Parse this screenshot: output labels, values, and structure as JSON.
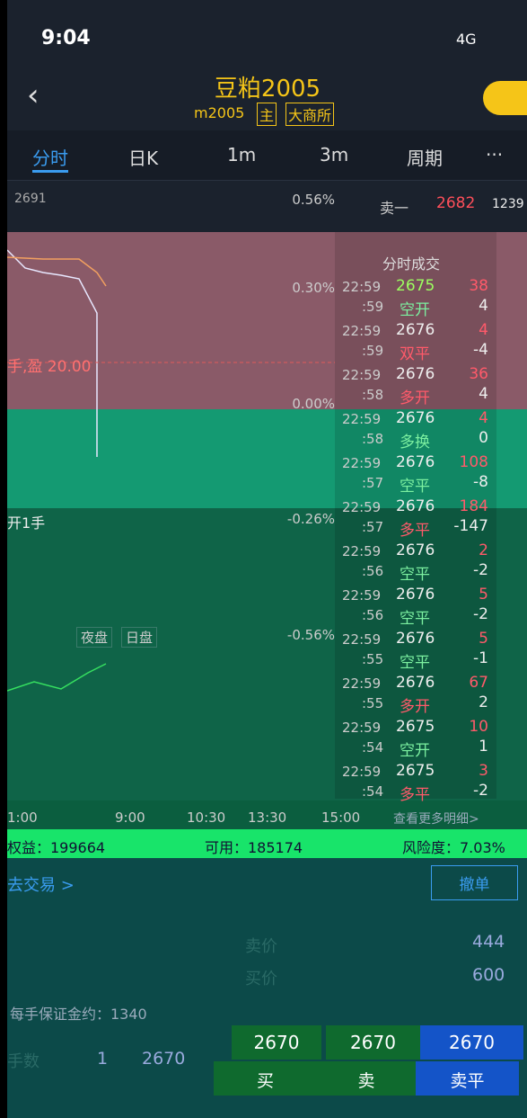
{
  "status": {
    "time": "9:04",
    "network": "4G"
  },
  "header": {
    "title": "豆粕2005",
    "code": "m2005",
    "tags": [
      "主",
      "大商所"
    ]
  },
  "tabs": [
    "分时",
    "日K",
    "1m",
    "3m",
    "周期",
    "···"
  ],
  "chart": {
    "top_price": "2691",
    "pct_labels": [
      "0.56%",
      "0.30%",
      "0.00%",
      "-0.26%",
      "-0.56%"
    ],
    "position_note": "手,盈 20.00",
    "open_note": "开1手",
    "sessions": [
      "夜盘",
      "日盘"
    ],
    "times": [
      "1:00",
      "9:00",
      "10:30",
      "13:30",
      "15:00"
    ]
  },
  "order_book": {
    "label": "卖一",
    "price": "2682",
    "volume": "1239"
  },
  "trades": {
    "title": "分时成交",
    "rows": [
      [
        "22:59",
        "2675",
        "38",
        ":59",
        "空开",
        "4"
      ],
      [
        "22:59",
        "2676",
        "4",
        ":59",
        "双平",
        "-4"
      ],
      [
        "22:59",
        "2676",
        "36",
        ":58",
        "多开",
        "4"
      ],
      [
        "22:59",
        "2676",
        "4",
        ":58",
        "多换",
        "0"
      ],
      [
        "22:59",
        "2676",
        "108",
        ":57",
        "空平",
        "-8"
      ],
      [
        "22:59",
        "2676",
        "184",
        ":57",
        "多平",
        "-147"
      ],
      [
        "22:59",
        "2676",
        "2",
        ":56",
        "空平",
        "-2"
      ],
      [
        "22:59",
        "2676",
        "5",
        ":56",
        "空平",
        "-2"
      ],
      [
        "22:59",
        "2676",
        "5",
        ":55",
        "空平",
        "-1"
      ],
      [
        "22:59",
        "2676",
        "67",
        ":55",
        "多开",
        "2"
      ],
      [
        "22:59",
        "2675",
        "10",
        ":54",
        "空开",
        "1"
      ],
      [
        "22:59",
        "2675",
        "3",
        ":54",
        "多平",
        "-2"
      ]
    ],
    "more": "查看更多明细>"
  },
  "account": {
    "equity": "权益：199664",
    "available": "可用：185174",
    "risk": "风险度：7.03%"
  },
  "trade": {
    "go_trade": "去交易 >",
    "cancel": "撤单",
    "ask_label": "卖价",
    "ask_value": "444",
    "bid_label": "买价",
    "bid_value": "600",
    "margin": "每手保证金约：1340",
    "lots_label": "手数",
    "lots": "1",
    "price": "2670",
    "buttons": [
      {
        "price": "2670",
        "label": "买"
      },
      {
        "price": "2670",
        "label": "卖"
      },
      {
        "price": "2670",
        "label": "卖平"
      }
    ]
  }
}
